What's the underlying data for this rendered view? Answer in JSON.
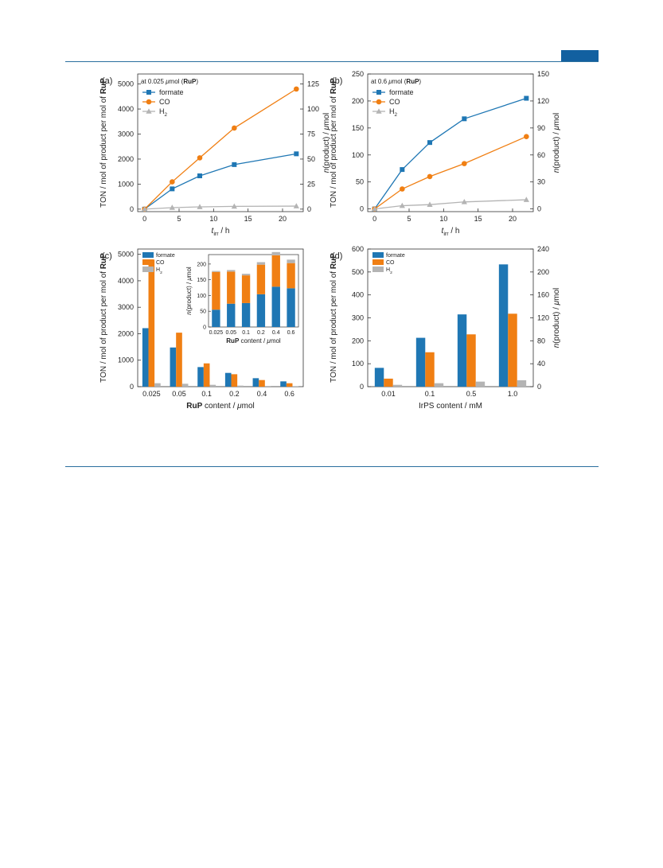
{
  "colors": {
    "formate": "#1f77b4",
    "co": "#f07f13",
    "h2": "#b4b4b4",
    "rule": "#2a6f9e",
    "tab": "#1260a0"
  },
  "chart_data": [
    {
      "panel": "(a)",
      "type": "line",
      "note": "at 0.025 μmol (RuP)",
      "xlabel": "t_irr / h",
      "ylabel": "TON / mol of product per mol of RuP",
      "y2label": "n(product) / μmol",
      "xlim": [
        -1,
        23
      ],
      "ylim": [
        -100,
        5400
      ],
      "y2lim": [
        -2.5,
        135
      ],
      "xticks": [
        0,
        5,
        10,
        15,
        20
      ],
      "yticks": [
        0,
        1000,
        2000,
        3000,
        4000,
        5000
      ],
      "y2ticks": [
        0,
        25,
        50,
        75,
        100,
        125
      ],
      "legend_position": "top-left",
      "series": [
        {
          "name": "formate",
          "marker": "square",
          "x": [
            0,
            4,
            8,
            13,
            22
          ],
          "y": [
            0,
            810,
            1330,
            1780,
            2210
          ]
        },
        {
          "name": "CO",
          "marker": "circle",
          "x": [
            0,
            4,
            8,
            13,
            22
          ],
          "y": [
            0,
            1090,
            2050,
            3240,
            4800
          ]
        },
        {
          "name": "H2",
          "marker": "triangle",
          "x": [
            0,
            4,
            8,
            13,
            22
          ],
          "y": [
            0,
            60,
            90,
            110,
            120
          ]
        }
      ]
    },
    {
      "panel": "(b)",
      "type": "line",
      "note": "at 0.6 μmol (RuP)",
      "xlabel": "t_irr / h",
      "ylabel": "TON / mol of product per mol of RuP",
      "y2label": "n(product) / μmol",
      "xlim": [
        -1,
        23
      ],
      "ylim": [
        -5,
        250
      ],
      "y2lim": [
        -3,
        150
      ],
      "xticks": [
        0,
        5,
        10,
        15,
        20
      ],
      "yticks": [
        0,
        50,
        100,
        150,
        200,
        250
      ],
      "y2ticks": [
        0,
        30,
        60,
        90,
        120,
        150
      ],
      "legend_position": "top-left",
      "series": [
        {
          "name": "formate",
          "marker": "square",
          "x": [
            0,
            4,
            8,
            13,
            22
          ],
          "y": [
            0,
            73,
            123,
            167,
            205
          ]
        },
        {
          "name": "CO",
          "marker": "circle",
          "x": [
            0,
            4,
            8,
            13,
            22
          ],
          "y": [
            0,
            37,
            60,
            84,
            134
          ]
        },
        {
          "name": "H2",
          "marker": "triangle",
          "x": [
            0,
            4,
            8,
            13,
            22
          ],
          "y": [
            0,
            6,
            8,
            13,
            17
          ]
        }
      ]
    },
    {
      "panel": "(c)",
      "type": "bar",
      "xlabel": "RuP content / μmol",
      "ylabel": "TON / mol of product per mol of RuP",
      "categories": [
        "0.025",
        "0.05",
        "0.1",
        "0.2",
        "0.4",
        "0.6"
      ],
      "ylim": [
        0,
        5200
      ],
      "yticks": [
        0,
        1000,
        2000,
        3000,
        4000,
        5000
      ],
      "legend_position": "top-left",
      "series": [
        {
          "name": "formate",
          "values": [
            2210,
            1480,
            740,
            520,
            320,
            200
          ]
        },
        {
          "name": "CO",
          "values": [
            4800,
            2040,
            880,
            470,
            250,
            130
          ]
        },
        {
          "name": "H2",
          "values": [
            130,
            110,
            70,
            40,
            25,
            20
          ]
        }
      ],
      "inset": {
        "type": "stacked-bar",
        "xlabel": "RuP content / μmol",
        "ylabel": "n(product) / μmol",
        "categories": [
          "0.025",
          "0.05",
          "0.1",
          "0.2",
          "0.4",
          "0.6"
        ],
        "ylim": [
          0,
          230
        ],
        "yticks": [
          0,
          50,
          100,
          150,
          200
        ],
        "series": [
          {
            "name": "formate",
            "values": [
              55,
              74,
              76,
              104,
              128,
              123
            ]
          },
          {
            "name": "CO",
            "values": [
              120,
              102,
              88,
              94,
              100,
              80
            ]
          },
          {
            "name": "H2",
            "values": [
              3,
              5,
              5,
              8,
              10,
              11
            ]
          }
        ]
      }
    },
    {
      "panel": "(d)",
      "type": "bar",
      "xlabel": "IrPS content / mM",
      "ylabel": "TON / mol of product per mol of RuP",
      "y2label": "n(product) / μmol",
      "categories": [
        "0.01",
        "0.1",
        "0.5",
        "1.0"
      ],
      "ylim": [
        0,
        600
      ],
      "y2lim": [
        0,
        240
      ],
      "yticks": [
        0,
        100,
        200,
        300,
        400,
        500,
        600
      ],
      "y2ticks": [
        0,
        40,
        80,
        120,
        160,
        200,
        240
      ],
      "legend_position": "top-left",
      "series": [
        {
          "name": "formate",
          "values": [
            82,
            213,
            315,
            533
          ]
        },
        {
          "name": "CO",
          "values": [
            35,
            150,
            228,
            318
          ]
        },
        {
          "name": "H2",
          "values": [
            8,
            15,
            22,
            28
          ]
        }
      ]
    }
  ]
}
